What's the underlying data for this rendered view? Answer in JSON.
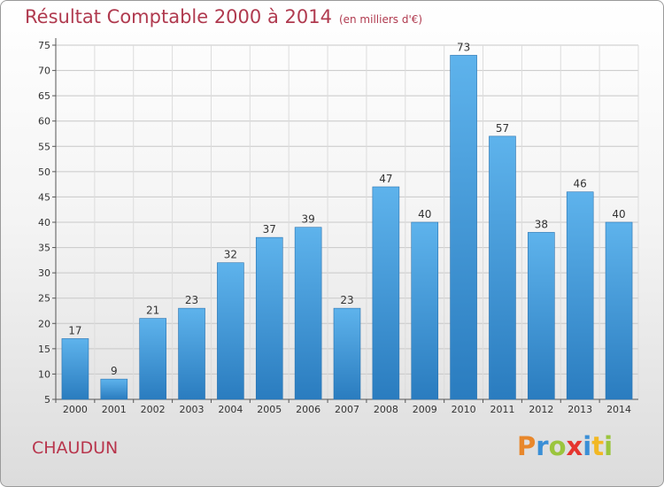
{
  "header": {
    "title": "Résultat Comptable 2000 à 2014",
    "subtitle": "(en milliers d'€)"
  },
  "footer": {
    "commune": "CHAUDUN",
    "logo": "Proxiti",
    "logo_colors": [
      "#e8872b",
      "#3a8fd6",
      "#9bc53d",
      "#e5352f",
      "#3a8fd6",
      "#f2b823",
      "#9bc53d"
    ]
  },
  "colors": {
    "bar_top": "#5eb3ec",
    "bar_bottom": "#2a7cbf",
    "title": "#b03a4f"
  },
  "chart_data": {
    "type": "bar",
    "categories": [
      "2000",
      "2001",
      "2002",
      "2003",
      "2004",
      "2005",
      "2006",
      "2007",
      "2008",
      "2009",
      "2010",
      "2011",
      "2012",
      "2013",
      "2014"
    ],
    "values": [
      17,
      9,
      21,
      23,
      32,
      37,
      39,
      23,
      47,
      40,
      73,
      57,
      38,
      46,
      40
    ],
    "title": "Résultat Comptable 2000 à 2014",
    "xlabel": "",
    "ylabel": "",
    "ylim": [
      5,
      75
    ],
    "yticks": [
      5,
      10,
      15,
      20,
      25,
      30,
      35,
      40,
      45,
      50,
      55,
      60,
      65,
      70,
      75
    ],
    "grid": true,
    "legend": "none"
  }
}
